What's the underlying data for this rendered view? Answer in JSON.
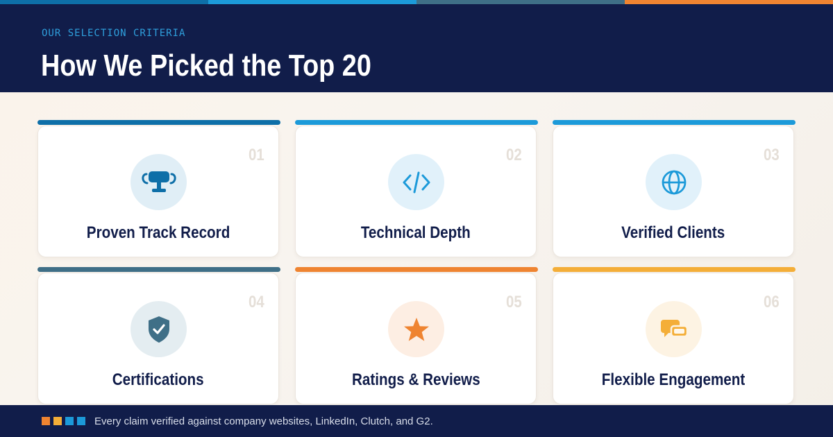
{
  "colors": {
    "navy": "#111d4a",
    "stripe": [
      "#0e6fa8",
      "#1c9ad9",
      "#3f6f87",
      "#ef8431"
    ]
  },
  "header": {
    "eyebrow": "OUR SELECTION CRITERIA",
    "title": "How We Picked the Top 20"
  },
  "cards": [
    {
      "number": "01",
      "label": "Proven Track Record",
      "icon": "trophy-icon",
      "accent": "#0e6fa8",
      "icon_bg": "#e0eef6"
    },
    {
      "number": "02",
      "label": "Technical Depth",
      "icon": "code-icon",
      "accent": "#1c9ad9",
      "icon_bg": "#e1f1fa"
    },
    {
      "number": "03",
      "label": "Verified Clients",
      "icon": "globe-icon",
      "accent": "#1c9ad9",
      "icon_bg": "#e1f1fa"
    },
    {
      "number": "04",
      "label": "Certifications",
      "icon": "shield-check-icon",
      "accent": "#3f6f87",
      "icon_bg": "#e4edf1"
    },
    {
      "number": "05",
      "label": "Ratings & Reviews",
      "icon": "star-icon",
      "accent": "#ef8431",
      "icon_bg": "#fdeee3"
    },
    {
      "number": "06",
      "label": "Flexible Engagement",
      "icon": "chat-bubbles-icon",
      "accent": "#f4ae38",
      "icon_bg": "#fdf3e3"
    }
  ],
  "footer": {
    "squares": [
      "#ef8431",
      "#f4ae38",
      "#1c9ad9",
      "#1c9ad9"
    ],
    "text": "Every claim verified against company websites, LinkedIn, Clutch, and G2."
  }
}
